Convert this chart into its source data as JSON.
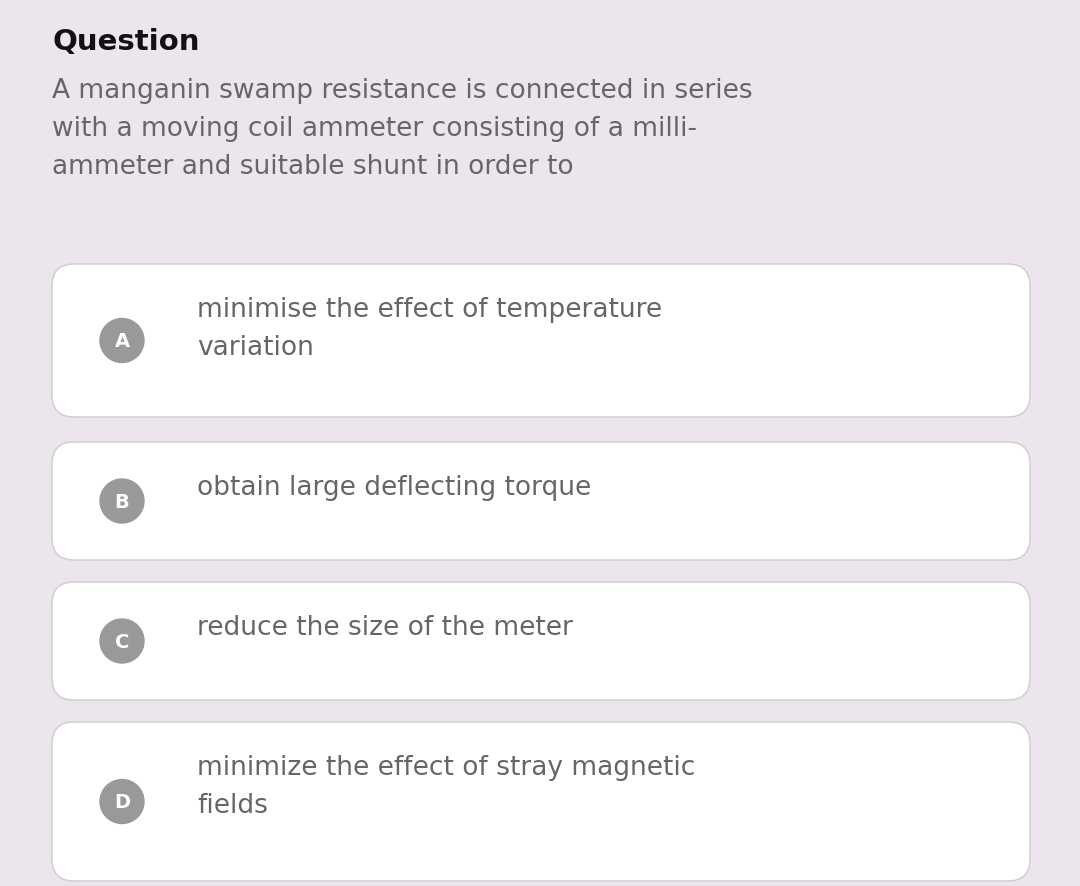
{
  "background_color": "#ede5ed",
  "title": "Question",
  "title_fontsize": 21,
  "title_color": "#111111",
  "question_text": "A manganin swamp resistance is connected in series\nwith a moving coil ammeter consisting of a milli-\nammeter and suitable shunt in order to",
  "question_fontsize": 19,
  "question_color": "#666666",
  "options": [
    {
      "label": "A",
      "text": "minimise the effect of temperature\nvariation"
    },
    {
      "label": "B",
      "text": "obtain large deflecting torque"
    },
    {
      "label": "C",
      "text": "reduce the size of the meter"
    },
    {
      "label": "D",
      "text": "minimize the effect of stray magnetic\nfields"
    }
  ],
  "option_box_color": "#ffffff",
  "option_box_edge_color": "#cccccc",
  "option_label_bg": "#999999",
  "option_label_color": "#ffffff",
  "option_text_color": "#666666",
  "option_fontsize": 19,
  "option_label_fontsize": 14,
  "fig_width": 10.8,
  "fig_height": 8.87,
  "dpi": 100
}
